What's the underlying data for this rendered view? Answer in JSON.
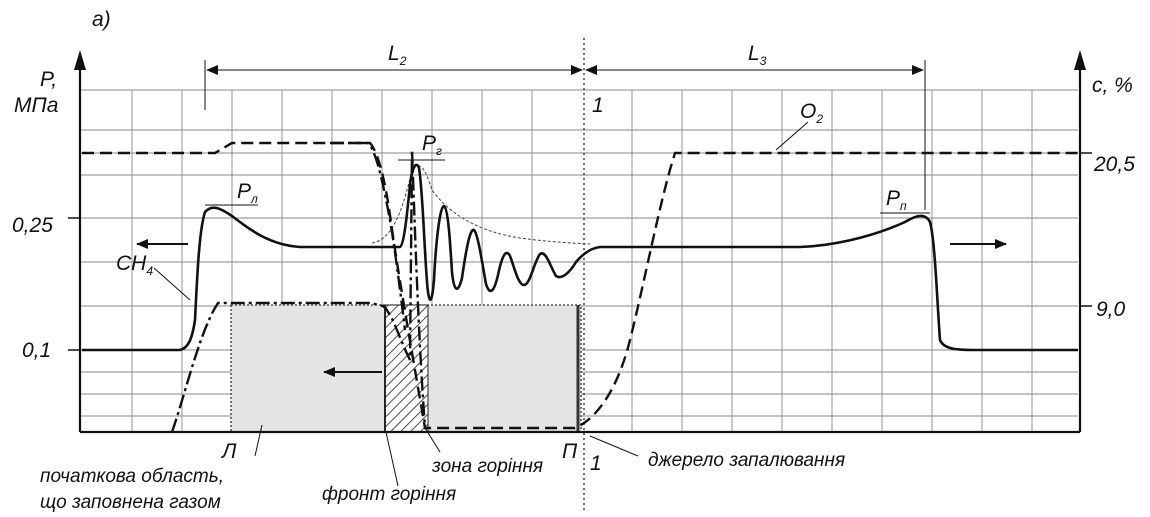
{
  "figure": {
    "panel_label": "а)",
    "left_axis": {
      "symbol": "P,",
      "unit": "МПа",
      "ticks": [
        "0,25",
        "0,1"
      ]
    },
    "right_axis": {
      "symbol": "c, %",
      "ticks": [
        "20,5",
        "9,0"
      ]
    },
    "dimensions": [
      {
        "base": "L",
        "sub": "2"
      },
      {
        "base": "L",
        "sub": "3"
      }
    ],
    "section_marks": {
      "top": "1",
      "bottom": "1"
    },
    "curve_labels": [
      {
        "base": "P",
        "sub": "л"
      },
      {
        "base": "P",
        "sub": "г"
      },
      {
        "base": "P",
        "sub": "п"
      },
      {
        "base": "O",
        "sub": "2"
      },
      {
        "base": "CH",
        "sub": "4"
      }
    ],
    "boundary_labels": {
      "left": "Л",
      "right": "П"
    },
    "annotations": {
      "region": [
        "початкова область,",
        "що  заповнена газом"
      ],
      "burning_zone": "зона горіння",
      "flame_front": "фронт горіння",
      "ignition_source": "джерело запалювання"
    }
  }
}
